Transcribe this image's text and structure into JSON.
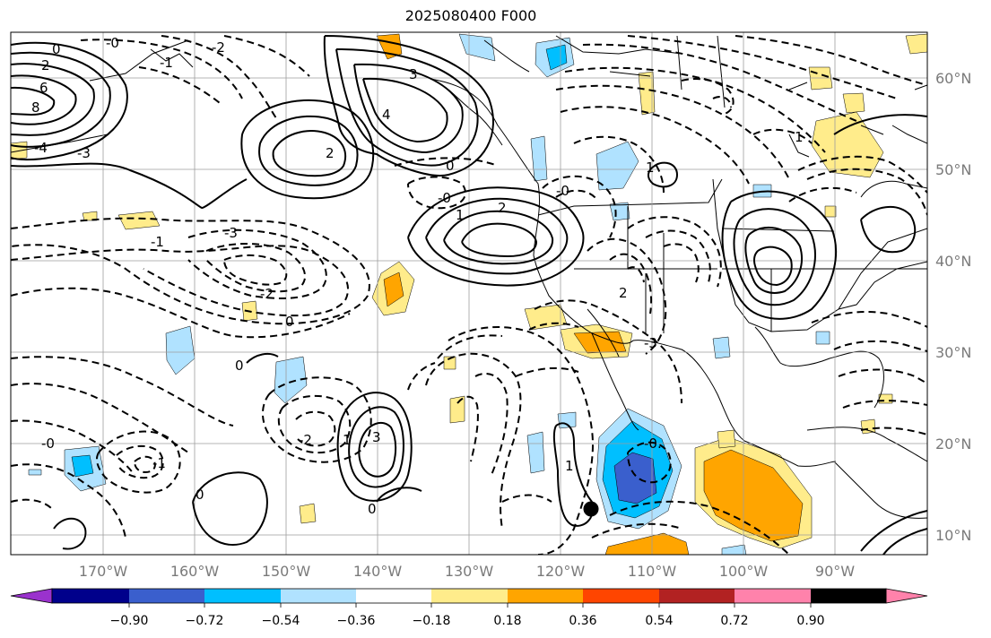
{
  "title": "2025080400 F000",
  "map": {
    "longitude_labels": [
      "170°W",
      "160°W",
      "150°W",
      "140°W",
      "130°W",
      "120°W",
      "110°W",
      "100°W",
      "90°W"
    ],
    "latitude_labels": [
      "60°N",
      "50°N",
      "40°N",
      "30°N",
      "20°N",
      "10°N"
    ],
    "grid": true,
    "contour_labels": [
      "0",
      "-0",
      "2",
      "-2",
      "6",
      "8",
      "-3",
      "3",
      "-4",
      "4",
      "-1",
      "1",
      "0",
      "-2",
      "2",
      "-3",
      "3",
      "-1",
      "1",
      "-0",
      "0",
      "-1",
      "1",
      "-2",
      "2",
      "0",
      "-0",
      "-3",
      "1",
      "2",
      "0",
      "-0",
      "1",
      "-0.",
      "0"
    ],
    "marker": "black-dot"
  },
  "colorbar": {
    "tick_labels": [
      "−0.90",
      "−0.72",
      "−0.54",
      "−0.36",
      "−0.18",
      "0.18",
      "0.36",
      "0.54",
      "0.72",
      "0.90"
    ],
    "colors": [
      "#9a32cd",
      "#00008b",
      "#3a5fcd",
      "#00bfff",
      "#b0e2ff",
      "#ffffff",
      "#ffec8b",
      "#ffa500",
      "#ff4500",
      "#b22222",
      "#ff82ab"
    ]
  }
}
